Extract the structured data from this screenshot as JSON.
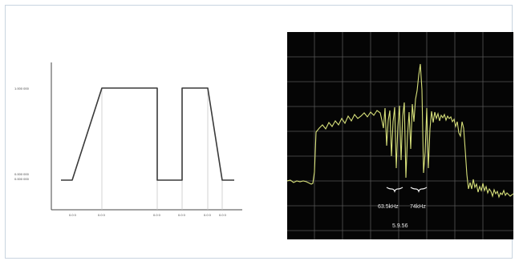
{
  "left_diagram": {
    "y_labels": [
      "1.000 000",
      "0.000 000",
      "0.000 000"
    ],
    "x_labels": [
      "0.0 0",
      "0.0 0",
      "0.0 0",
      "0.0 0",
      "0.0 0",
      "0.0 0"
    ],
    "line_color": "#3a3a3a",
    "guide_color": "#bdbdbd"
  },
  "spectrum": {
    "labels": {
      "left_bw": "63.5kHz",
      "right_bw": "74kHz",
      "center": "5.9.56"
    },
    "trace_color": "#d7e07a",
    "grid_color": "#5a5a5a"
  }
}
